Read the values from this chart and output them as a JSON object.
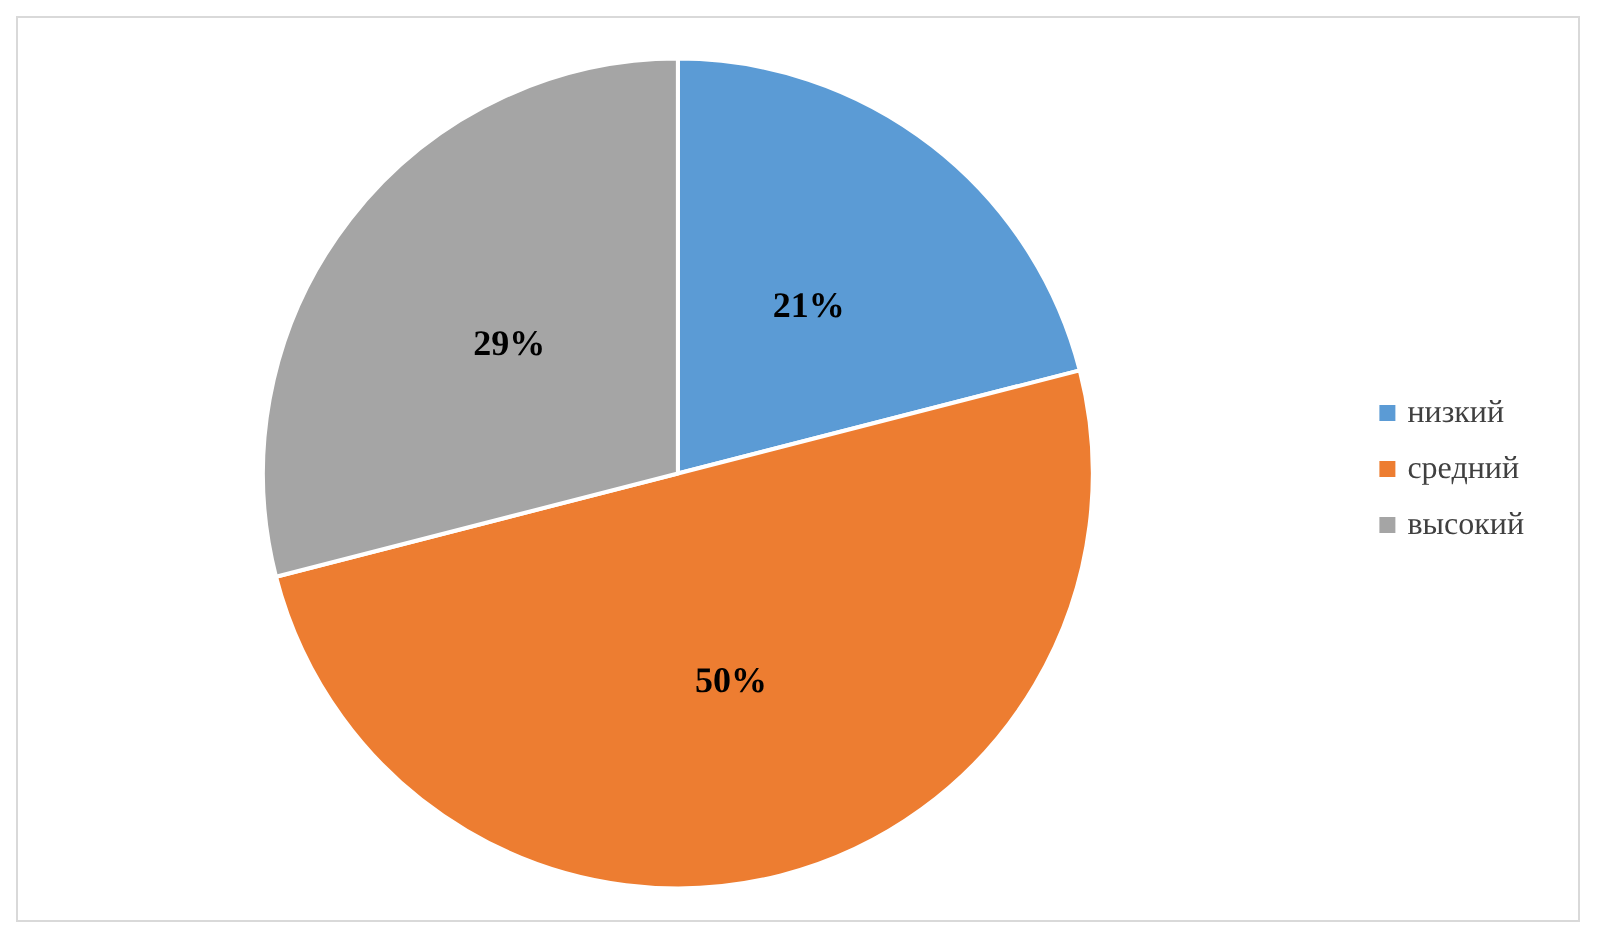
{
  "chart_data": {
    "type": "pie",
    "categories": [
      "низкий",
      "средний",
      "высокий"
    ],
    "values": [
      21,
      50,
      29
    ],
    "colors": [
      "#5b9bd5",
      "#ed7d31",
      "#a5a5a5"
    ],
    "value_labels": [
      "21%",
      "50%",
      "29%"
    ],
    "legend": "right"
  }
}
